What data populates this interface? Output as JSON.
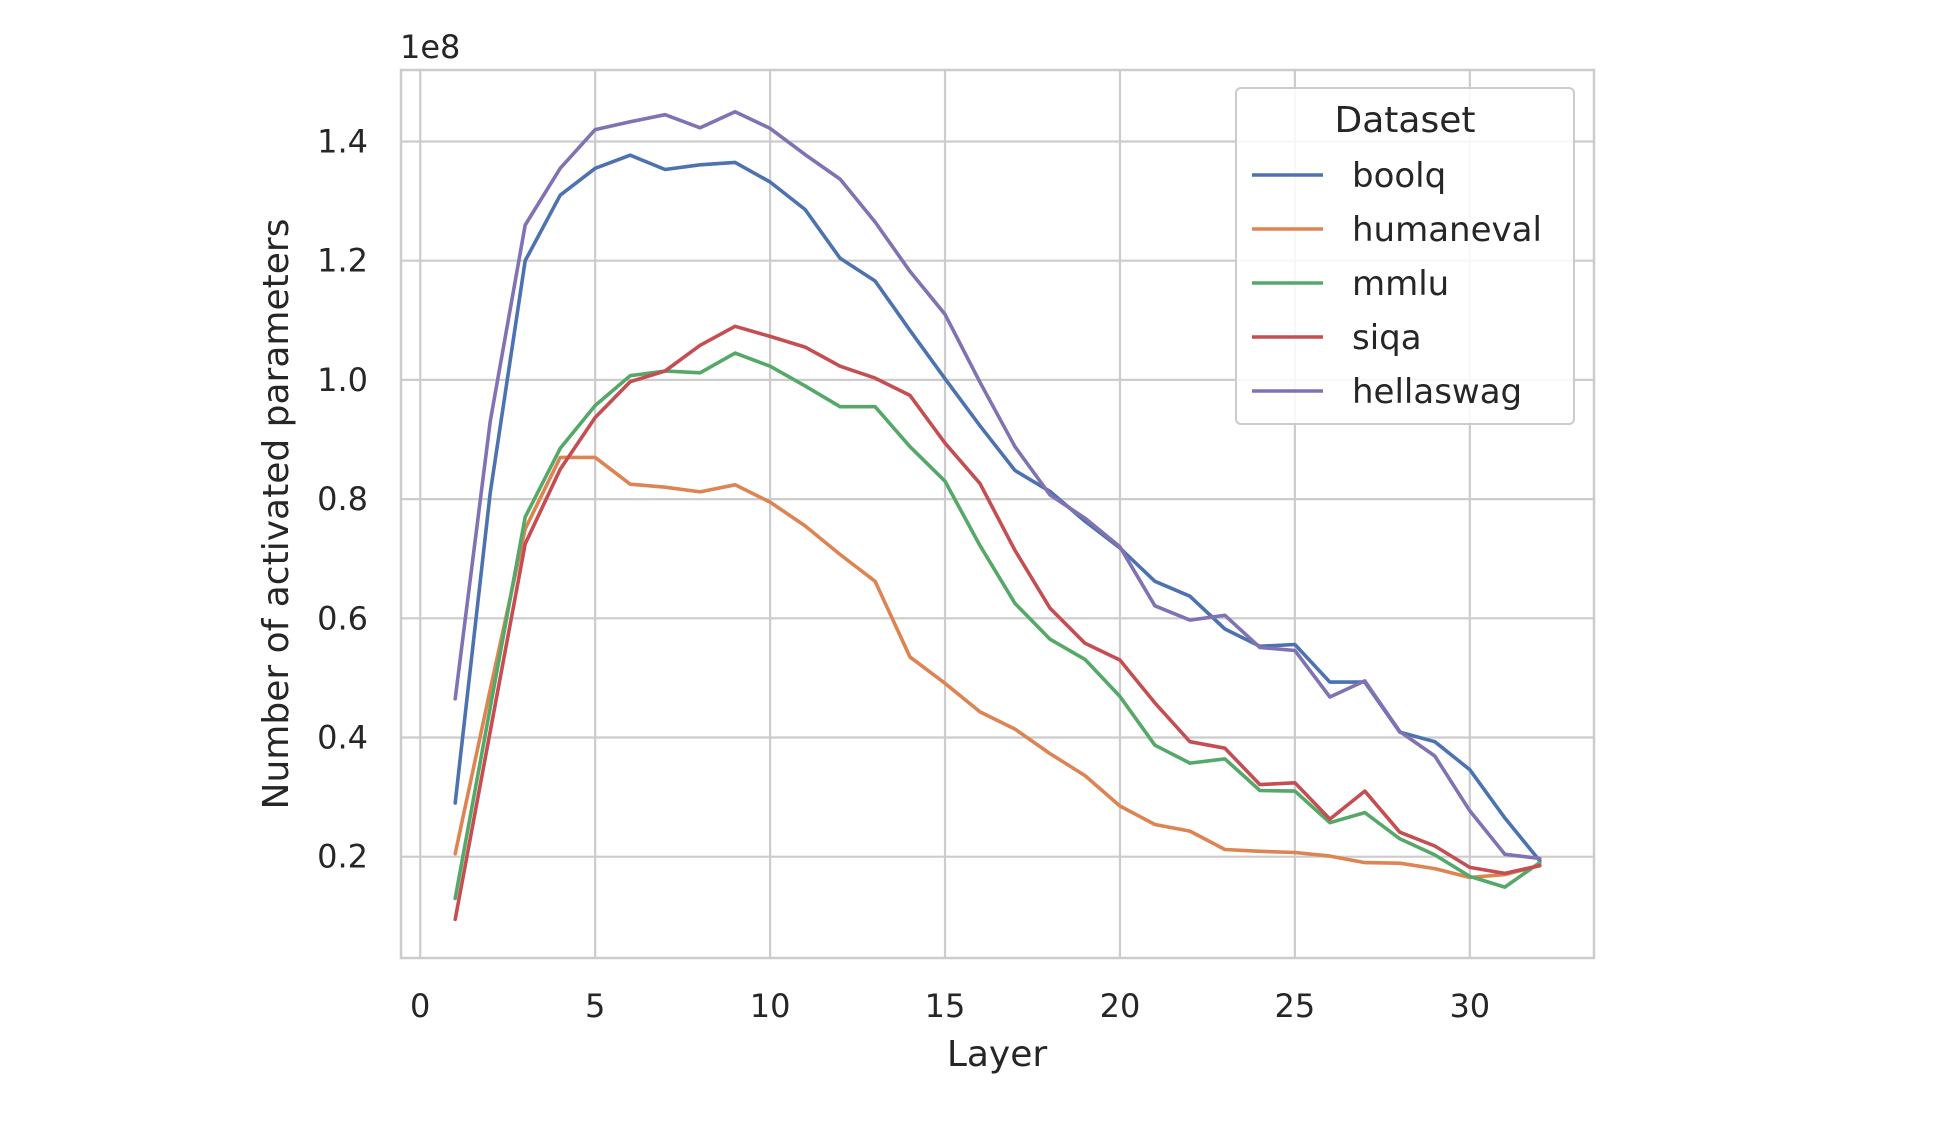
{
  "chart_data": {
    "type": "line",
    "xlabel": "Layer",
    "ylabel": "Number of activated parameters",
    "y_offset_label": "1e8",
    "xlim": [
      -0.55,
      33.55
    ],
    "ylim": [
      0.03,
      1.52
    ],
    "x_ticks": [
      0,
      5,
      10,
      15,
      20,
      25,
      30
    ],
    "y_ticks": [
      0.2,
      0.4,
      0.6,
      0.8,
      1.0,
      1.2,
      1.4
    ],
    "x_tick_labels": [
      "0",
      "5",
      "10",
      "15",
      "20",
      "25",
      "30"
    ],
    "y_tick_labels": [
      "0.2",
      "0.4",
      "0.6",
      "0.8",
      "1.0",
      "1.2",
      "1.4"
    ],
    "grid": true,
    "legend": {
      "title": "Dataset",
      "placement": "top-right"
    },
    "x": [
      1,
      2,
      3,
      4,
      5,
      6,
      7,
      8,
      9,
      10,
      11,
      12,
      13,
      14,
      15,
      16,
      17,
      18,
      19,
      20,
      21,
      22,
      23,
      24,
      25,
      26,
      27,
      28,
      29,
      30,
      31,
      32
    ],
    "series": [
      {
        "name": "boolq",
        "color": "#4c72b0",
        "values": [
          0.29,
          0.81,
          1.2,
          1.31,
          1.355,
          1.377,
          1.353,
          1.361,
          1.365,
          1.332,
          1.286,
          1.204,
          1.166,
          1.083,
          1.002,
          0.923,
          0.848,
          0.813,
          0.763,
          0.718,
          0.662,
          0.637,
          0.582,
          0.553,
          0.556,
          0.493,
          0.493,
          0.409,
          0.393,
          0.346,
          0.265,
          0.193
        ]
      },
      {
        "name": "humaneval",
        "color": "#dd8452",
        "values": [
          0.205,
          0.48,
          0.75,
          0.87,
          0.87,
          0.825,
          0.82,
          0.812,
          0.824,
          0.795,
          0.755,
          0.707,
          0.662,
          0.535,
          0.491,
          0.443,
          0.414,
          0.373,
          0.336,
          0.285,
          0.254,
          0.243,
          0.212,
          0.209,
          0.207,
          0.201,
          0.19,
          0.189,
          0.18,
          0.165,
          0.17,
          0.185
        ]
      },
      {
        "name": "mmlu",
        "color": "#55a868",
        "values": [
          0.13,
          0.45,
          0.77,
          0.885,
          0.957,
          1.007,
          1.015,
          1.012,
          1.045,
          1.023,
          0.99,
          0.955,
          0.955,
          0.888,
          0.83,
          0.722,
          0.625,
          0.565,
          0.531,
          0.469,
          0.387,
          0.357,
          0.364,
          0.311,
          0.31,
          0.257,
          0.274,
          0.23,
          0.203,
          0.167,
          0.149,
          0.19
        ]
      },
      {
        "name": "siqa",
        "color": "#c44e52",
        "values": [
          0.095,
          0.41,
          0.725,
          0.85,
          0.937,
          0.997,
          1.015,
          1.058,
          1.09,
          1.073,
          1.055,
          1.023,
          1.003,
          0.974,
          0.894,
          0.826,
          0.714,
          0.617,
          0.558,
          0.53,
          0.458,
          0.393,
          0.382,
          0.321,
          0.324,
          0.263,
          0.31,
          0.241,
          0.218,
          0.182,
          0.172,
          0.185
        ]
      },
      {
        "name": "hellaswag",
        "color": "#8172b3",
        "values": [
          0.465,
          0.93,
          1.26,
          1.355,
          1.42,
          1.433,
          1.445,
          1.423,
          1.45,
          1.422,
          1.378,
          1.337,
          1.265,
          1.182,
          1.11,
          0.996,
          0.888,
          0.807,
          0.768,
          0.72,
          0.621,
          0.597,
          0.605,
          0.551,
          0.546,
          0.468,
          0.495,
          0.41,
          0.369,
          0.277,
          0.204,
          0.197
        ]
      }
    ]
  }
}
